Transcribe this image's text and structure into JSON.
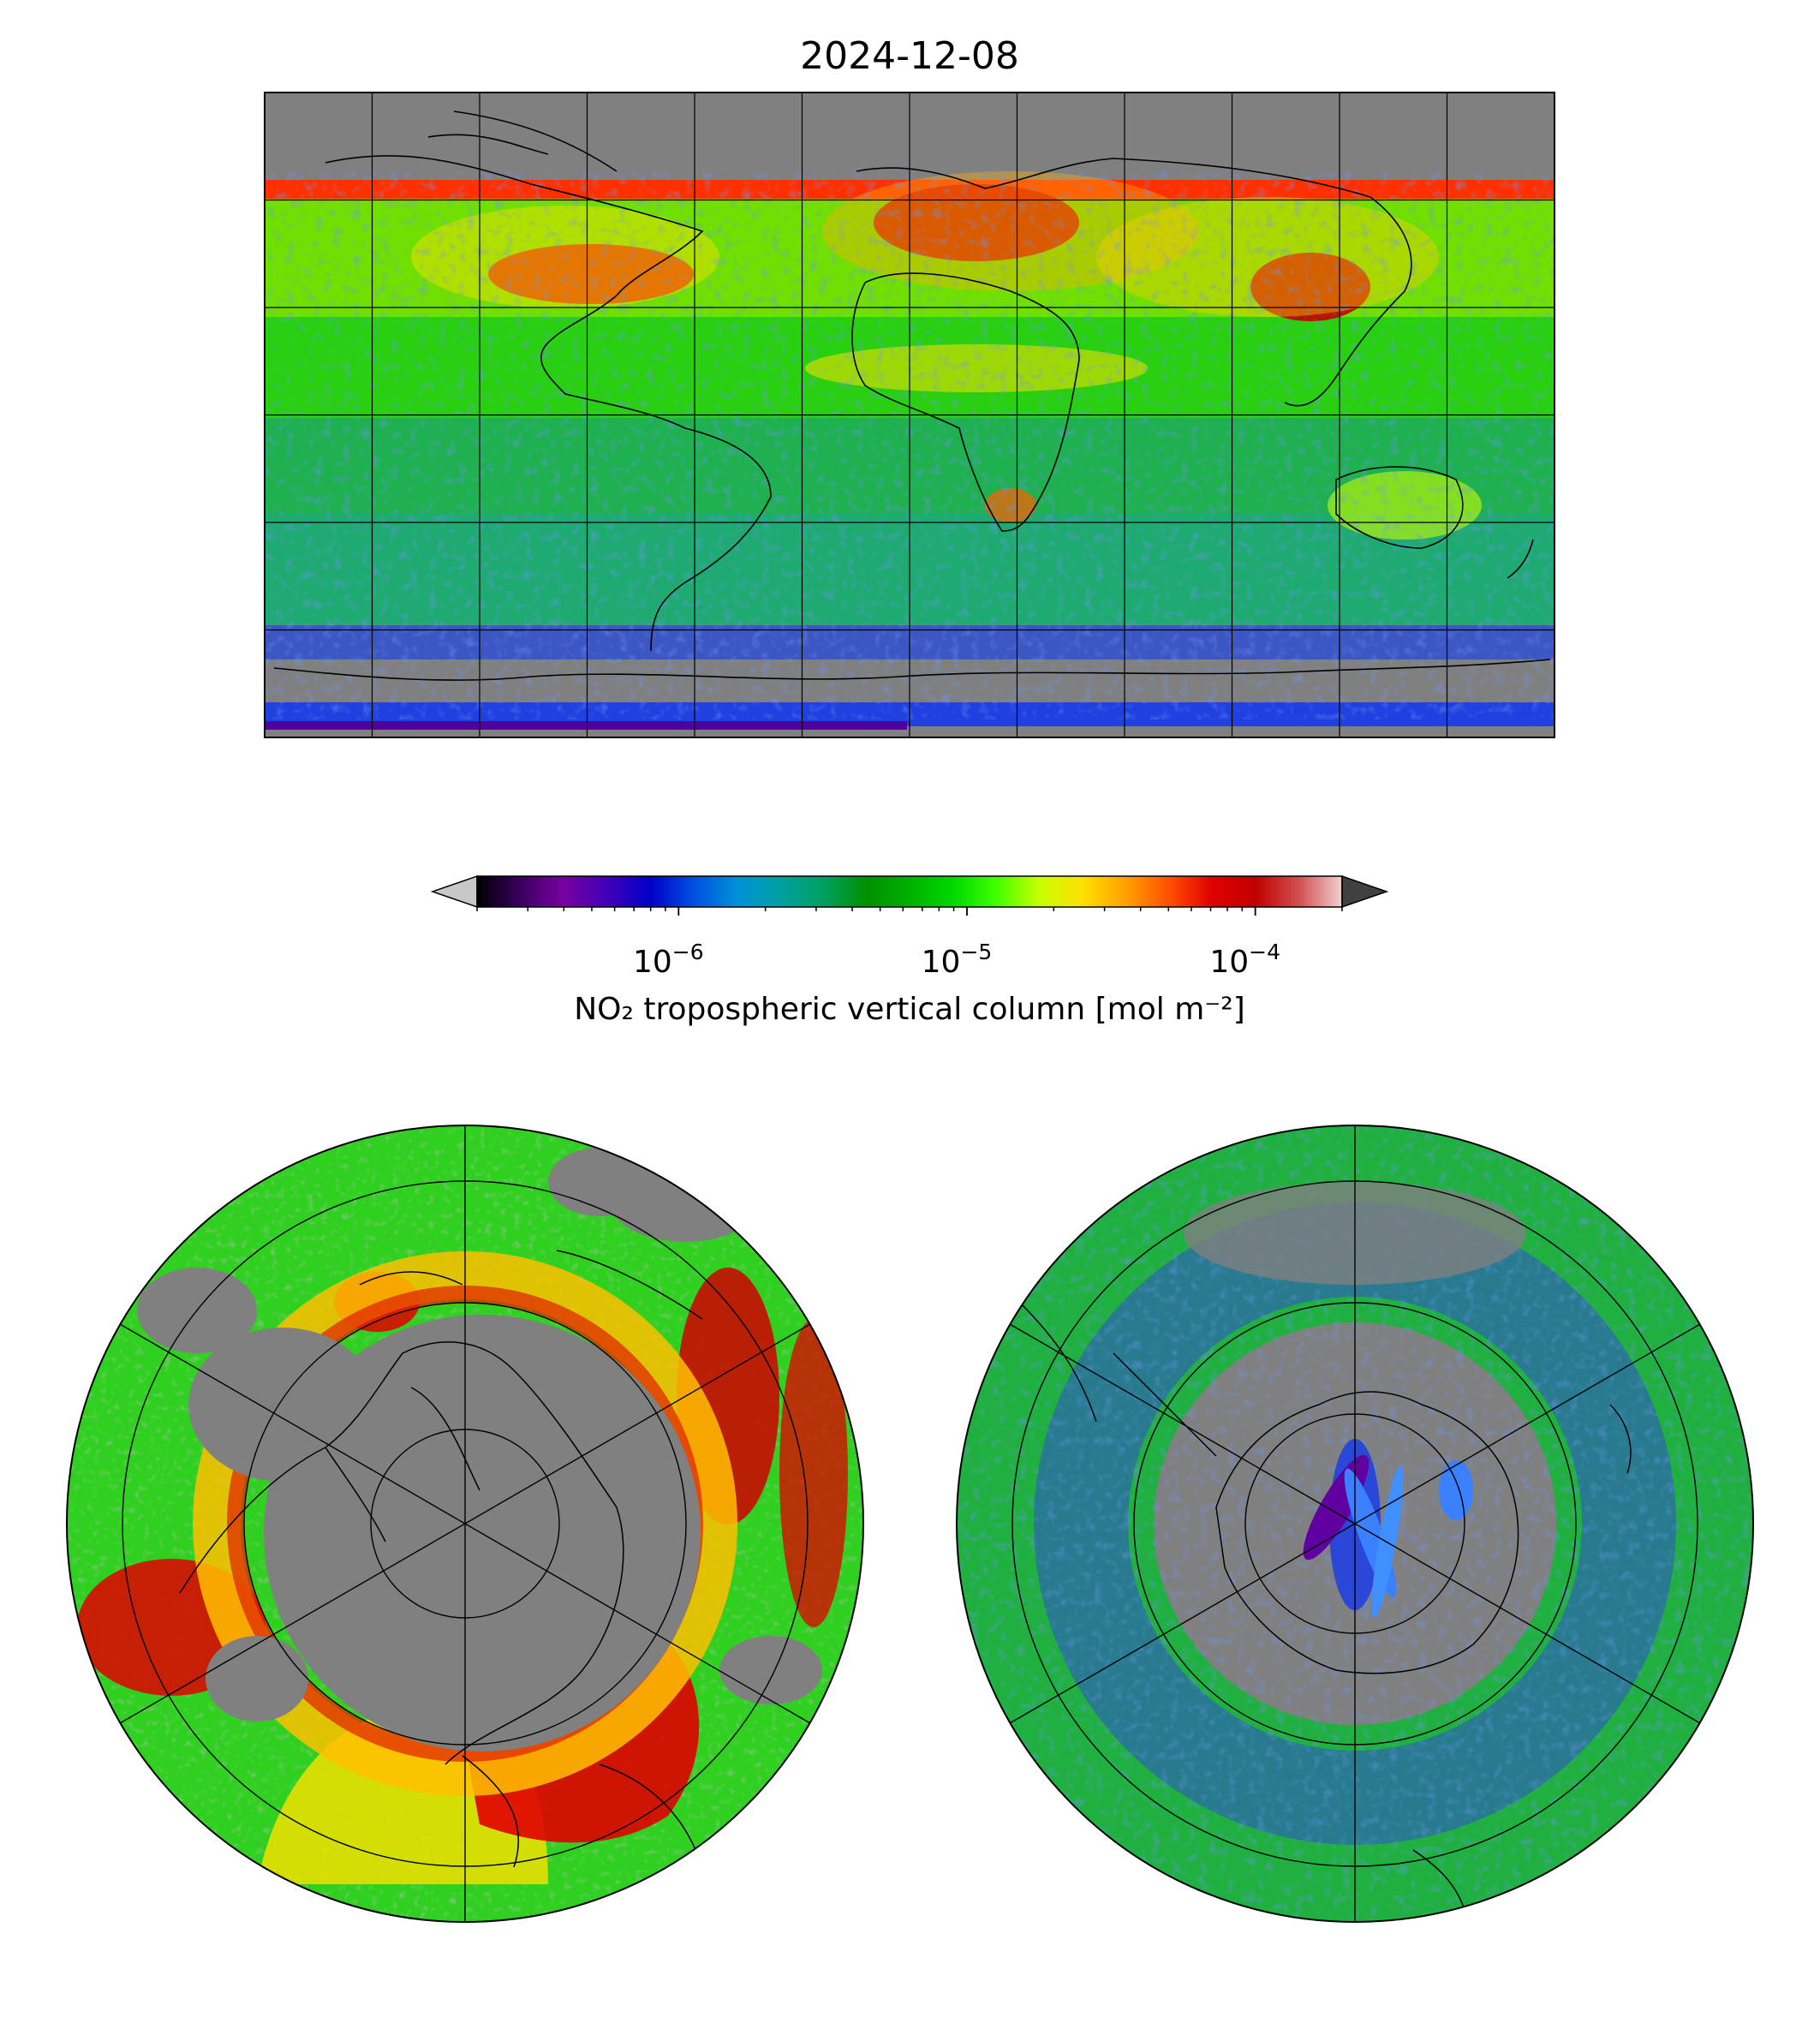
{
  "figure": {
    "title": "2024-12-08"
  },
  "colorbar": {
    "label": "NO₂ tropospheric vertical column [mol m⁻²]",
    "scale": "log",
    "range": [
      2e-07,
      0.0002
    ],
    "ticks": [
      {
        "value": 1e-06,
        "base": "10",
        "exp": "−6"
      },
      {
        "value": 1e-05,
        "base": "10",
        "exp": "−5"
      },
      {
        "value": 0.0001,
        "base": "10",
        "exp": "−4"
      }
    ],
    "extend": "both",
    "under_color": "#c8c8c8",
    "over_color": "#404040",
    "colors": [
      "#000000",
      "#3a0060",
      "#7800a0",
      "#4000b8",
      "#0000c8",
      "#0050e0",
      "#0090d8",
      "#00a0a0",
      "#00a060",
      "#009000",
      "#00b000",
      "#00d800",
      "#40ff00",
      "#c8ff00",
      "#ffe000",
      "#ffa000",
      "#ff5000",
      "#e00000",
      "#c00000",
      "#d05050",
      "#f0d0d0"
    ]
  },
  "map_colors": {
    "nodata": "#808080",
    "low": "#2a3cd0",
    "mid": "#00c020",
    "high": "#e00000"
  },
  "panels": [
    {
      "projection": "PlateCarree",
      "region": "global"
    },
    {
      "projection": "NorthPolarStereo",
      "region": "northern-hemisphere"
    },
    {
      "projection": "SouthPolarStereo",
      "region": "southern-hemisphere"
    }
  ]
}
